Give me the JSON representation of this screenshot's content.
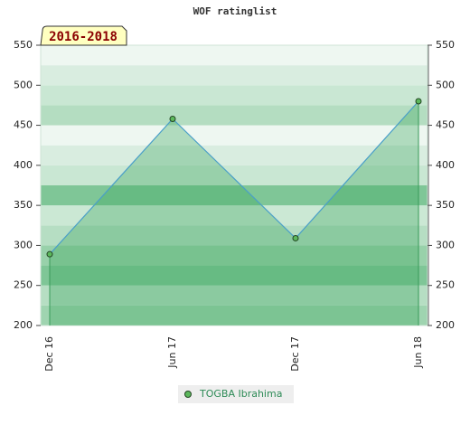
{
  "chart_data": {
    "type": "line",
    "title": "WOF ratinglist",
    "annotation": "2016-2018",
    "categories": [
      "Dec 16",
      "Jun 17",
      "Dec 17",
      "Jun 18"
    ],
    "series": [
      {
        "name": "TOGBA Ibrahima",
        "color": "#4a9fc8",
        "values": [
          289,
          458,
          309,
          480
        ]
      }
    ],
    "ylim": [
      200,
      550
    ],
    "yticks": [
      200,
      250,
      300,
      350,
      400,
      450,
      500,
      550
    ],
    "y2lim": [
      200,
      550
    ],
    "y2ticks": [
      200,
      250,
      300,
      350,
      400,
      450,
      500,
      550
    ]
  }
}
